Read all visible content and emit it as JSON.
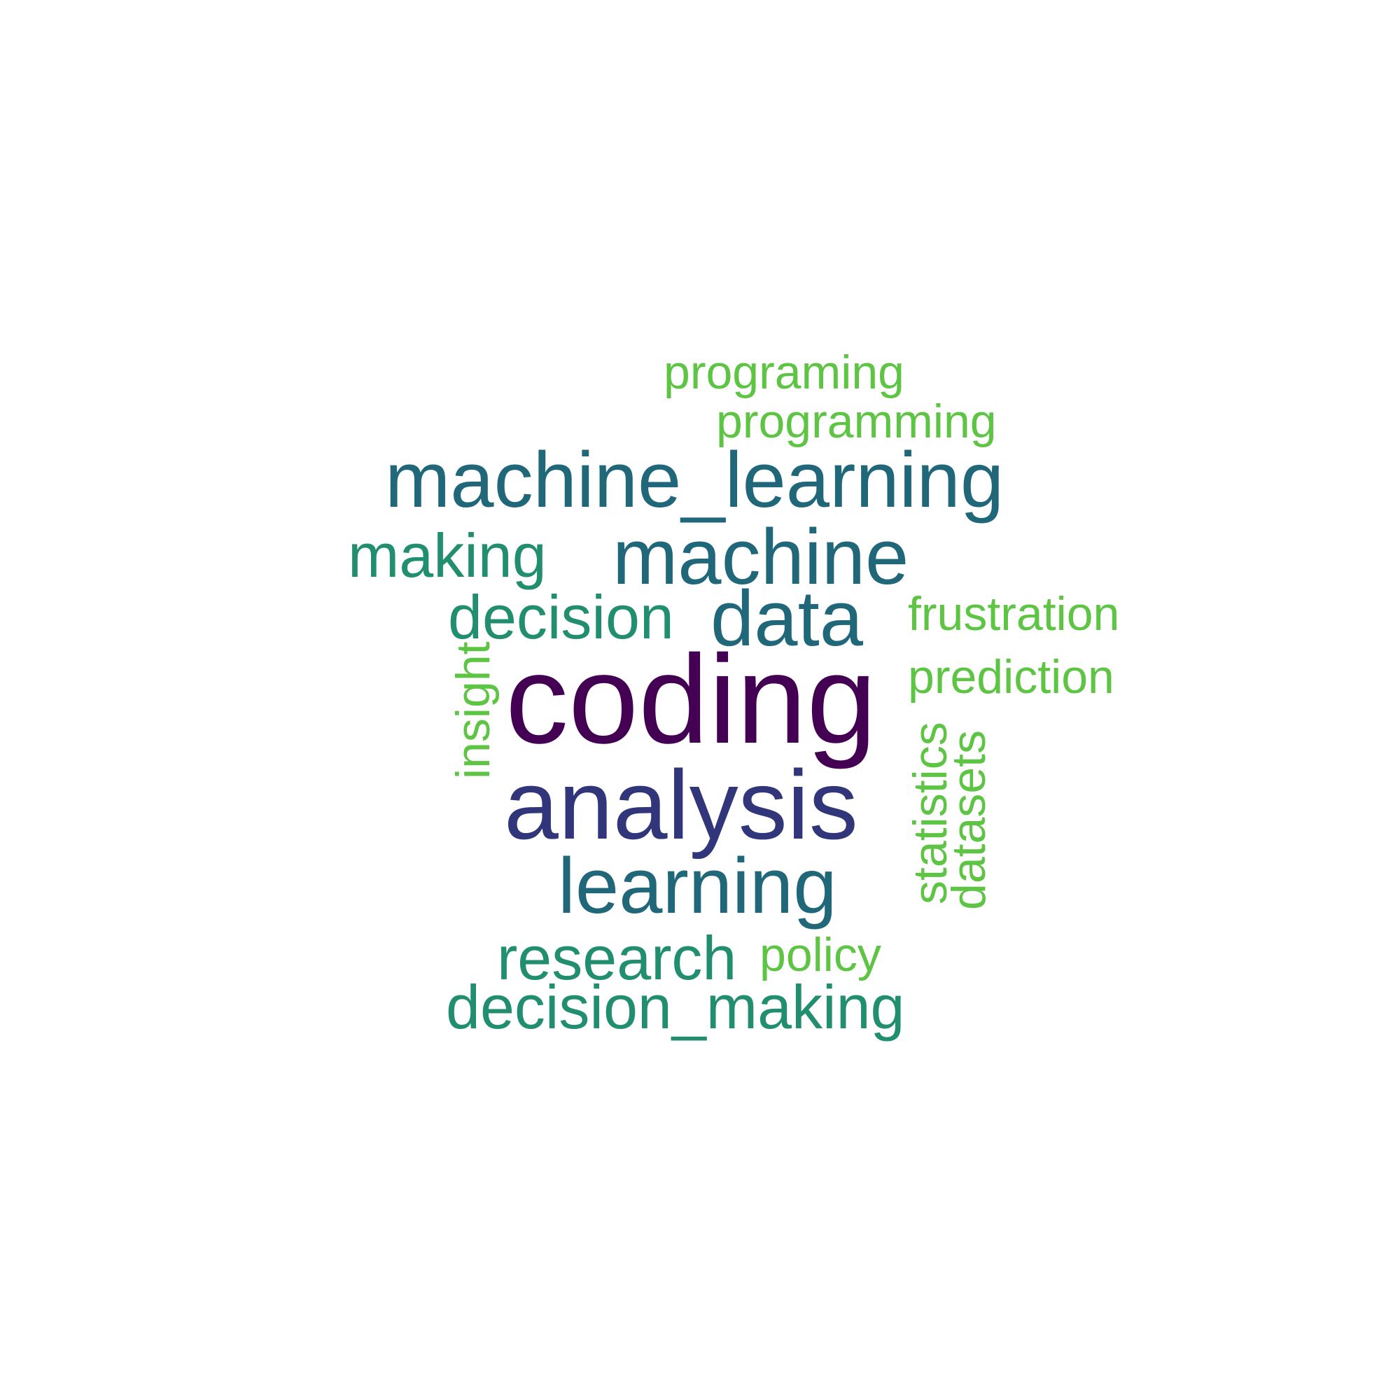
{
  "background": "#ffffff",
  "palette": {
    "dark_purple": "#440154",
    "indigo": "#31367a",
    "teal": "#21677a",
    "green_teal": "#218f6f",
    "light_green": "#5ec443"
  },
  "words": [
    {
      "id": "coding",
      "text": "coding",
      "color": "#440154"
    },
    {
      "id": "analysis",
      "text": "analysis",
      "color": "#31367a"
    },
    {
      "id": "machine_learning",
      "text": "machine_learning",
      "color": "#21677a"
    },
    {
      "id": "machine",
      "text": "machine",
      "color": "#21677a"
    },
    {
      "id": "data",
      "text": "data",
      "color": "#21677a"
    },
    {
      "id": "learning",
      "text": "learning",
      "color": "#21677a"
    },
    {
      "id": "making",
      "text": "making",
      "color": "#218f6f"
    },
    {
      "id": "decision",
      "text": "decision",
      "color": "#218f6f"
    },
    {
      "id": "research",
      "text": "research",
      "color": "#218f6f"
    },
    {
      "id": "decision_making",
      "text": "decision_making",
      "color": "#218f6f"
    },
    {
      "id": "programing",
      "text": "programing",
      "color": "#5ec443"
    },
    {
      "id": "programming",
      "text": "programming",
      "color": "#5ec443"
    },
    {
      "id": "frustration",
      "text": "frustration",
      "color": "#5ec443"
    },
    {
      "id": "prediction",
      "text": "prediction",
      "color": "#5ec443"
    },
    {
      "id": "insight",
      "text": "insight",
      "color": "#5ec443",
      "orientation": "vertical"
    },
    {
      "id": "statistics",
      "text": "statistics",
      "color": "#5ec443",
      "orientation": "vertical"
    },
    {
      "id": "datasets",
      "text": "datasets",
      "color": "#5ec443",
      "orientation": "vertical"
    },
    {
      "id": "policy",
      "text": "policy",
      "color": "#5ec443"
    }
  ]
}
